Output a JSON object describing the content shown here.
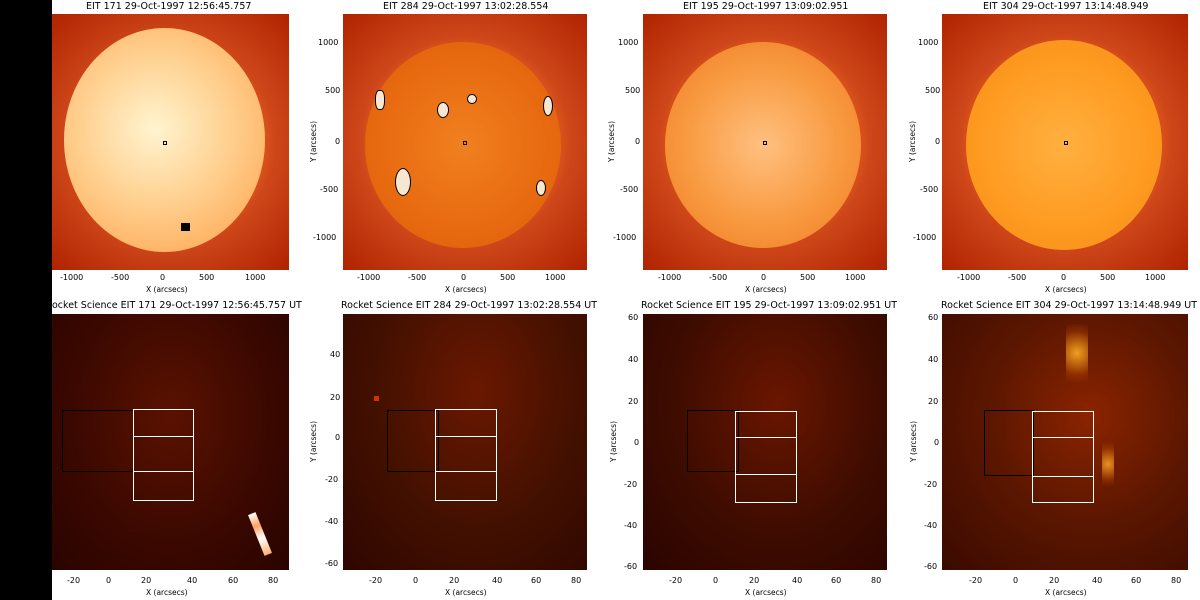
{
  "panels_top": [
    {
      "title": "EIT 171  29-Oct-1997  12:56:45.757",
      "xlabel": "X (arcsecs)",
      "ylabel": "",
      "xticks": [
        "-1000",
        "-500",
        "0",
        "500",
        "1000"
      ],
      "yticks": []
    },
    {
      "title": "EIT 284  29-Oct-1997  13:02:28.554",
      "xlabel": "X (arcsecs)",
      "ylabel": "Y (arcsecs)",
      "xticks": [
        "-1000",
        "-500",
        "0",
        "500",
        "1000"
      ],
      "yticks": [
        "1000",
        "500",
        "0",
        "-500",
        "-1000"
      ]
    },
    {
      "title": "EIT 195  29-Oct-1997  13:09:02.951",
      "xlabel": "X (arcsecs)",
      "ylabel": "Y (arcsecs)",
      "xticks": [
        "-1000",
        "-500",
        "0",
        "500",
        "1000"
      ],
      "yticks": [
        "1000",
        "500",
        "0",
        "-500",
        "-1000"
      ]
    },
    {
      "title": "EIT 304  29-Oct-1997  13:14:48.949",
      "xlabel": "X (arcsecs)",
      "ylabel": "Y (arcsecs)",
      "xticks": [
        "-1000",
        "-500",
        "0",
        "500",
        "1000"
      ],
      "yticks": [
        "1000",
        "500",
        "0",
        "-500",
        "-1000"
      ]
    }
  ],
  "panels_bottom": [
    {
      "title": "ocket Science  EIT 171  29-Oct-1997  12:56:45.757 UT",
      "xlabel": "X (arcsecs)",
      "ylabel": "",
      "xticks": [
        "-20",
        "0",
        "20",
        "40",
        "60",
        "80"
      ],
      "yticks": []
    },
    {
      "title": "Rocket Science  EIT 284  29-Oct-1997  13:02:28.554 UT",
      "xlabel": "X (arcsecs)",
      "ylabel": "Y (arcsecs)",
      "xticks": [
        "-20",
        "0",
        "20",
        "40",
        "60",
        "80"
      ],
      "yticks": [
        "40",
        "20",
        "0",
        "-20",
        "-40",
        "-60"
      ]
    },
    {
      "title": "Rocket Science  EIT 195  29-Oct-1997  13:09:02.951 UT",
      "xlabel": "X (arcsecs)",
      "ylabel": "Y (arcsecs)",
      "xticks": [
        "-20",
        "0",
        "20",
        "40",
        "60",
        "80"
      ],
      "yticks": [
        "60",
        "40",
        "20",
        "0",
        "-20",
        "-40",
        "-60"
      ]
    },
    {
      "title": "Rocket Science  EIT 304  29-Oct-1997  13:14:48.949 UT",
      "xlabel": "X (arcsecs)",
      "ylabel": "Y (arcsecs)",
      "xticks": [
        "-20",
        "0",
        "20",
        "40",
        "60",
        "80"
      ],
      "yticks": [
        "60",
        "40",
        "20",
        "0",
        "-20",
        "-40",
        "-60"
      ]
    }
  ],
  "colors": {
    "disk_171": "#ffb060",
    "disk_284": "#e86a10",
    "disk_195": "#f89a40",
    "disk_304": "#ff9a20"
  }
}
